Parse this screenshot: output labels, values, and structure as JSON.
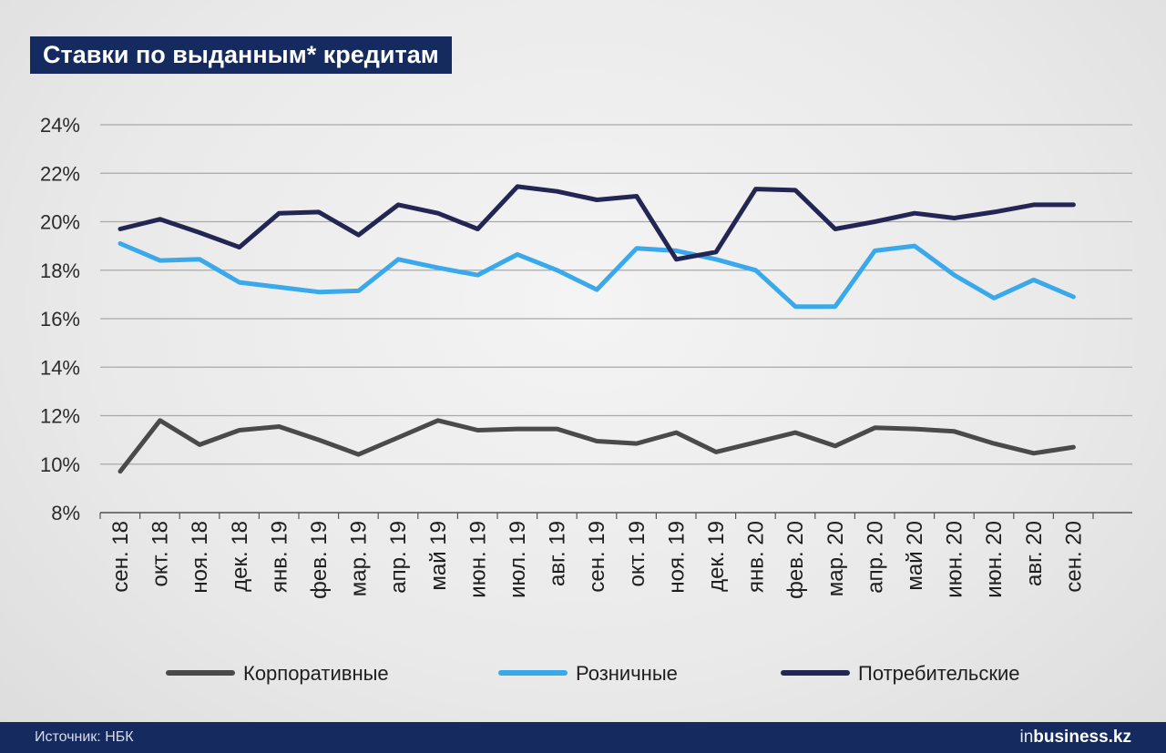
{
  "title": "Ставки по выданным* кредитам",
  "source": "Источник: НБК",
  "brand": {
    "prefix": "in",
    "name": "business.kz"
  },
  "chart_data": {
    "type": "line",
    "title": "Ставки по выданным* кредитам",
    "xlabel": "",
    "ylabel": "",
    "ylim": [
      8,
      24
    ],
    "yticks": [
      8,
      10,
      12,
      14,
      16,
      18,
      20,
      22,
      24
    ],
    "ytick_labels": [
      "8%",
      "10%",
      "12%",
      "14%",
      "16%",
      "18%",
      "20%",
      "22%",
      "24%"
    ],
    "grid": true,
    "legend_position": "bottom",
    "categories": [
      "сен. 18",
      "окт. 18",
      "ноя. 18",
      "дек. 18",
      "янв. 19",
      "фев. 19",
      "мар. 19",
      "апр. 19",
      "май 19",
      "июн. 19",
      "июл. 19",
      "авг. 19",
      "сен. 19",
      "окт. 19",
      "ноя. 19",
      "дек. 19",
      "янв. 20",
      "фев. 20",
      "мар. 20",
      "апр. 20",
      "май 20",
      "июн. 20",
      "июн. 20",
      "авг. 20",
      "сен. 20"
    ],
    "series": [
      {
        "name": "Корпоративные",
        "color": "#4a4a4a",
        "values": [
          9.7,
          11.8,
          10.8,
          11.4,
          11.55,
          11.0,
          10.4,
          11.1,
          11.8,
          11.4,
          11.45,
          11.45,
          10.95,
          10.85,
          11.3,
          10.5,
          10.9,
          11.3,
          10.75,
          11.5,
          11.45,
          11.35,
          10.85,
          10.45,
          10.7
        ]
      },
      {
        "name": "Розничные",
        "color": "#3aa9ec",
        "values": [
          19.1,
          18.4,
          18.45,
          17.5,
          17.3,
          17.1,
          17.15,
          18.45,
          18.1,
          17.8,
          18.65,
          18.0,
          17.2,
          18.9,
          18.8,
          18.45,
          18.0,
          16.5,
          16.5,
          18.8,
          19.0,
          17.8,
          16.85,
          17.6,
          16.9
        ]
      },
      {
        "name": "Потребительские",
        "color": "#232653",
        "values": [
          19.7,
          20.1,
          19.55,
          18.95,
          20.35,
          20.4,
          19.45,
          20.7,
          20.35,
          19.7,
          21.45,
          21.25,
          20.9,
          21.05,
          18.45,
          18.75,
          21.35,
          21.3,
          19.7,
          20.0,
          20.35,
          20.15,
          20.4,
          20.7,
          20.7
        ]
      }
    ]
  }
}
